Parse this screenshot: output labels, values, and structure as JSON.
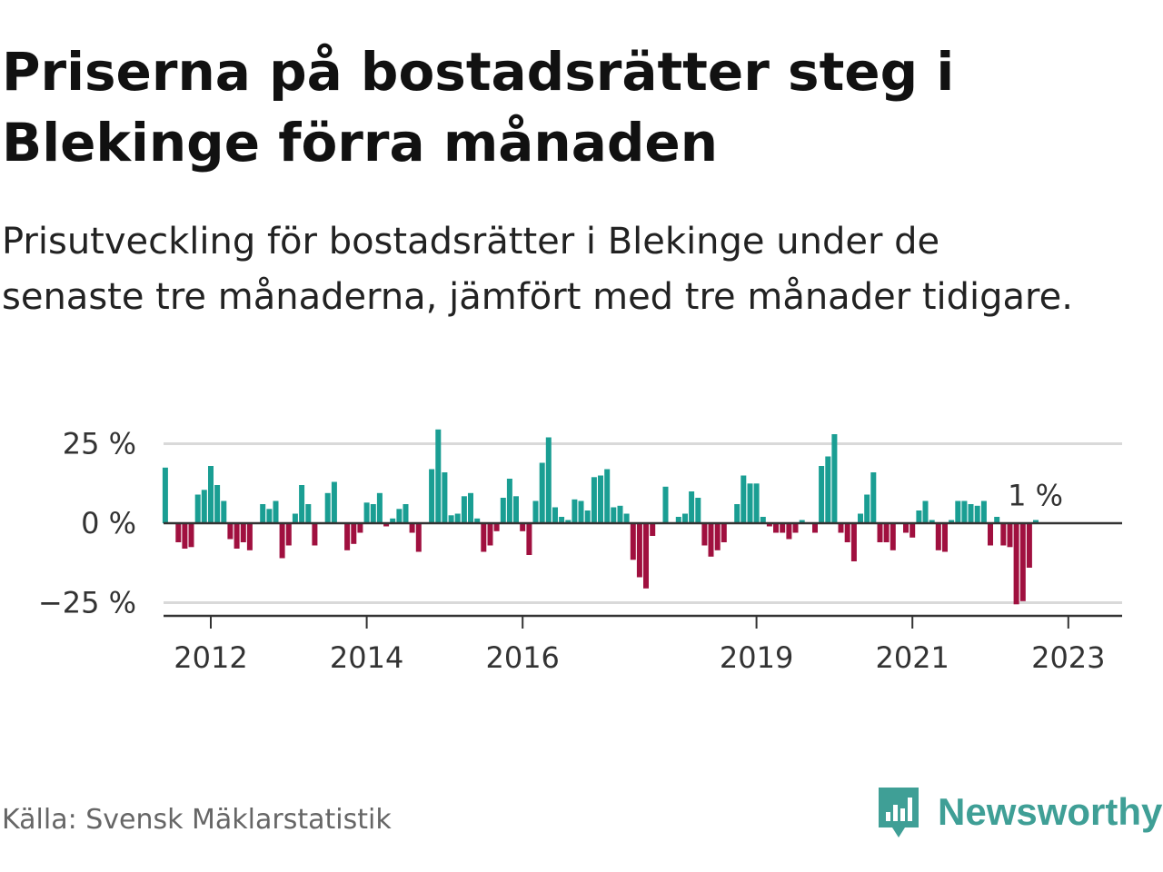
{
  "title": "Priserna på bostadsrätter steg i Blekinge förra månaden",
  "subtitle": "Prisutveckling för bostadsrätter i Blekinge under de senaste tre månaderna, jämfört med tre månader tidigare.",
  "source": "Källa: Svensk Mäklarstatistik",
  "brand": {
    "name": "Newsworthy",
    "icon": "newsworthy-logo-icon",
    "color": "#3f9f96"
  },
  "colors": {
    "positive": "#1a9e93",
    "negative": "#a0103f",
    "grid": "#d9d9d9",
    "zero": "#333333"
  },
  "chart_data": {
    "type": "bar",
    "ylim": [
      -27,
      30
    ],
    "yticks": [
      {
        "value": 25,
        "label": "25 %"
      },
      {
        "value": 0,
        "label": "0 %"
      },
      {
        "value": -25,
        "label": "−25 %"
      }
    ],
    "xticks": [
      {
        "label": "2012",
        "index": 0
      },
      {
        "label": "2014",
        "index": 24
      },
      {
        "label": "2016",
        "index": 48
      },
      {
        "label": "2019",
        "index": 84
      },
      {
        "label": "2021",
        "index": 108
      },
      {
        "label": "2023",
        "index": 132
      }
    ],
    "start_offset": -7,
    "last_label": "1 %",
    "values": [
      17.5,
      0,
      -6,
      -8,
      -7.5,
      9,
      10.5,
      18,
      12,
      7,
      -5,
      -8,
      -6,
      -8.5,
      0,
      6,
      4.5,
      7,
      -11,
      -7,
      3,
      12,
      6,
      -7,
      0,
      9.5,
      13,
      0,
      -8.5,
      -6.5,
      -3,
      6.5,
      6,
      9.5,
      -1,
      1.5,
      4.5,
      6,
      -3,
      -9,
      0,
      17,
      29.5,
      16,
      2.5,
      3,
      8.5,
      9.5,
      1.5,
      -9,
      -7,
      -2.5,
      8,
      14,
      8.5,
      -2.5,
      -10,
      7,
      19,
      27,
      5,
      2,
      1,
      7.5,
      7,
      4,
      14.5,
      15,
      17,
      5,
      5.5,
      3,
      -11.5,
      -17,
      -20.5,
      -4,
      0,
      11.5,
      0,
      2,
      3,
      10,
      8,
      -7,
      -10.5,
      -8.5,
      -6,
      0,
      6,
      15,
      12.5,
      12.5,
      2,
      -1,
      -3,
      -3,
      -5,
      -3,
      1,
      0,
      -3,
      18,
      21,
      28,
      -3,
      -6,
      -12,
      3,
      9,
      16,
      -6,
      -6,
      -8.5,
      0,
      -3,
      -4.5,
      4,
      7,
      1,
      -8.5,
      -9,
      1,
      7,
      7,
      6,
      5.5,
      7,
      -7,
      2,
      -7,
      -7.5,
      -25.5,
      -24.5,
      -14,
      1
    ]
  }
}
